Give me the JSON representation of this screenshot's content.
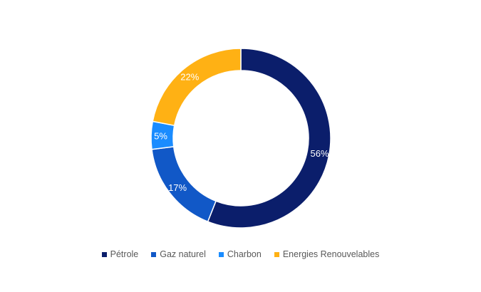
{
  "chart_data": {
    "type": "pie",
    "donut": true,
    "title": "",
    "categories": [
      "Pétrole",
      "Gaz naturel",
      "Charbon",
      "Energies Renouvelables"
    ],
    "values": [
      56,
      17,
      5,
      22
    ],
    "labels": [
      "56%",
      "17%",
      "5%",
      "22%"
    ],
    "colors": [
      "#0b1e6b",
      "#1158c7",
      "#1a8cff",
      "#ffb114"
    ],
    "start": "top",
    "direction": "clockwise",
    "legend_position": "bottom"
  }
}
